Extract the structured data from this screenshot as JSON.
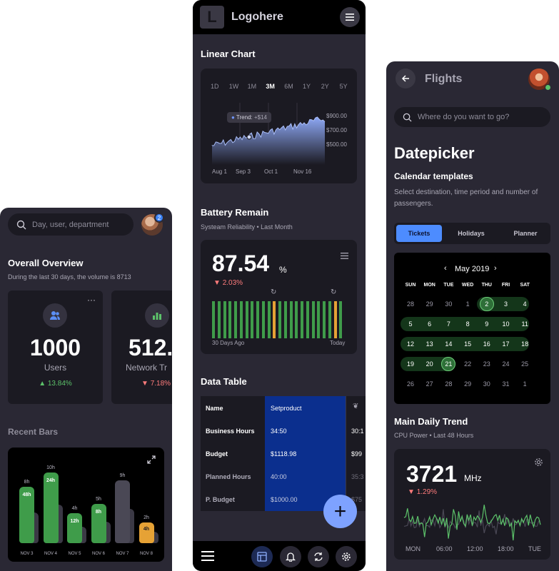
{
  "left": {
    "search_placeholder": "Day, user, department",
    "badge": "2",
    "overview_title": "Overall Overview",
    "overview_sub": "During the last 30 days, the volume is 8713",
    "cards": [
      {
        "value": "1000",
        "label": "Users",
        "delta": "13.84%",
        "dir": "up"
      },
      {
        "value": "512.",
        "label": "Network Tr",
        "delta": "7.18%",
        "dir": "down"
      }
    ],
    "recent_title": "Recent Bars",
    "bars": [
      {
        "top": "8h",
        "label": "48h",
        "date": "NOV 3",
        "fill": 0.72,
        "color": "#3f9c4a"
      },
      {
        "top": "10h",
        "label": "24h",
        "date": "NOV 4",
        "fill": 0.9,
        "color": "#3f9c4a"
      },
      {
        "top": "4h",
        "label": "12h",
        "date": "NOV 5",
        "fill": 0.38,
        "color": "#3f9c4a"
      },
      {
        "top": "5h",
        "label": "8h",
        "date": "NOV 6",
        "fill": 0.5,
        "color": "#3f9c4a"
      },
      {
        "top": "9h",
        "label": "",
        "date": "NOV 7",
        "fill": 0.8,
        "color": "#4a4855"
      },
      {
        "top": "2h",
        "label": "4h",
        "date": "NOV 8",
        "fill": 0.26,
        "color": "#e6a235"
      }
    ]
  },
  "mid": {
    "logo_letter": "L",
    "logo_text": "Logohere",
    "linear_title": "Linear Chart",
    "ranges": [
      "1D",
      "1W",
      "1M",
      "3M",
      "6M",
      "1Y",
      "2Y",
      "5Y"
    ],
    "active_range": "3M",
    "tooltip_label": "Trend:",
    "tooltip_value": "+$14",
    "chart_data": {
      "type": "area",
      "x_ticks": [
        "Aug 1",
        "Sep 3",
        "Oct 1",
        "Nov 16"
      ],
      "y_ticks": [
        "$900.00",
        "$700.00",
        "$500.00"
      ],
      "title": "Linear Chart"
    },
    "battery_title": "Battery Remain",
    "battery_sub": "Systeam Reliability • Last Month",
    "battery_value": "87.54",
    "battery_unit": "%",
    "battery_delta": "2.03%",
    "battery_from": "30 Days Ago",
    "battery_to": "Today",
    "table_title": "Data Table",
    "table_rows": [
      {
        "k": "Name",
        "v": "Setproduct",
        "c": ""
      },
      {
        "k": "Business Hours",
        "v": "34:50",
        "c": "30:1"
      },
      {
        "k": "Budget",
        "v": "$1118.98",
        "c": "$99"
      },
      {
        "k": "Planned Hours",
        "v": "40:00",
        "c": "35:3"
      },
      {
        "k": "P. Budget",
        "v": "$1000.00",
        "c": "$75"
      }
    ],
    "fab": "+"
  },
  "right": {
    "title": "Flights",
    "search_placeholder": "Where do you want to go?",
    "heading": "Datepicker",
    "subheading": "Calendar templates",
    "desc": "Select destination, time period and number of passengers.",
    "tabs": [
      "Tickets",
      "Holidays",
      "Planner"
    ],
    "month": "May 2019",
    "dows": [
      "SUN",
      "MON",
      "TUE",
      "WED",
      "THU",
      "FRI",
      "SAT"
    ],
    "days": [
      [
        "28",
        "29",
        "30",
        "1",
        "2",
        "3",
        "4"
      ],
      [
        "5",
        "6",
        "7",
        "8",
        "9",
        "10",
        "11"
      ],
      [
        "12",
        "13",
        "14",
        "15",
        "16",
        "17",
        "18"
      ],
      [
        "19",
        "20",
        "21",
        "22",
        "23",
        "24",
        "25"
      ],
      [
        "26",
        "27",
        "28",
        "29",
        "30",
        "31",
        "1"
      ]
    ],
    "trend_title": "Main Daily Trend",
    "trend_sub": "CPU Power • Last 48 Hours",
    "trend_value": "3721",
    "trend_unit": "MHz",
    "trend_delta": "1.29%",
    "trend_x": [
      "MON",
      "06:00",
      "12:00",
      "18:00",
      "TUE"
    ]
  }
}
